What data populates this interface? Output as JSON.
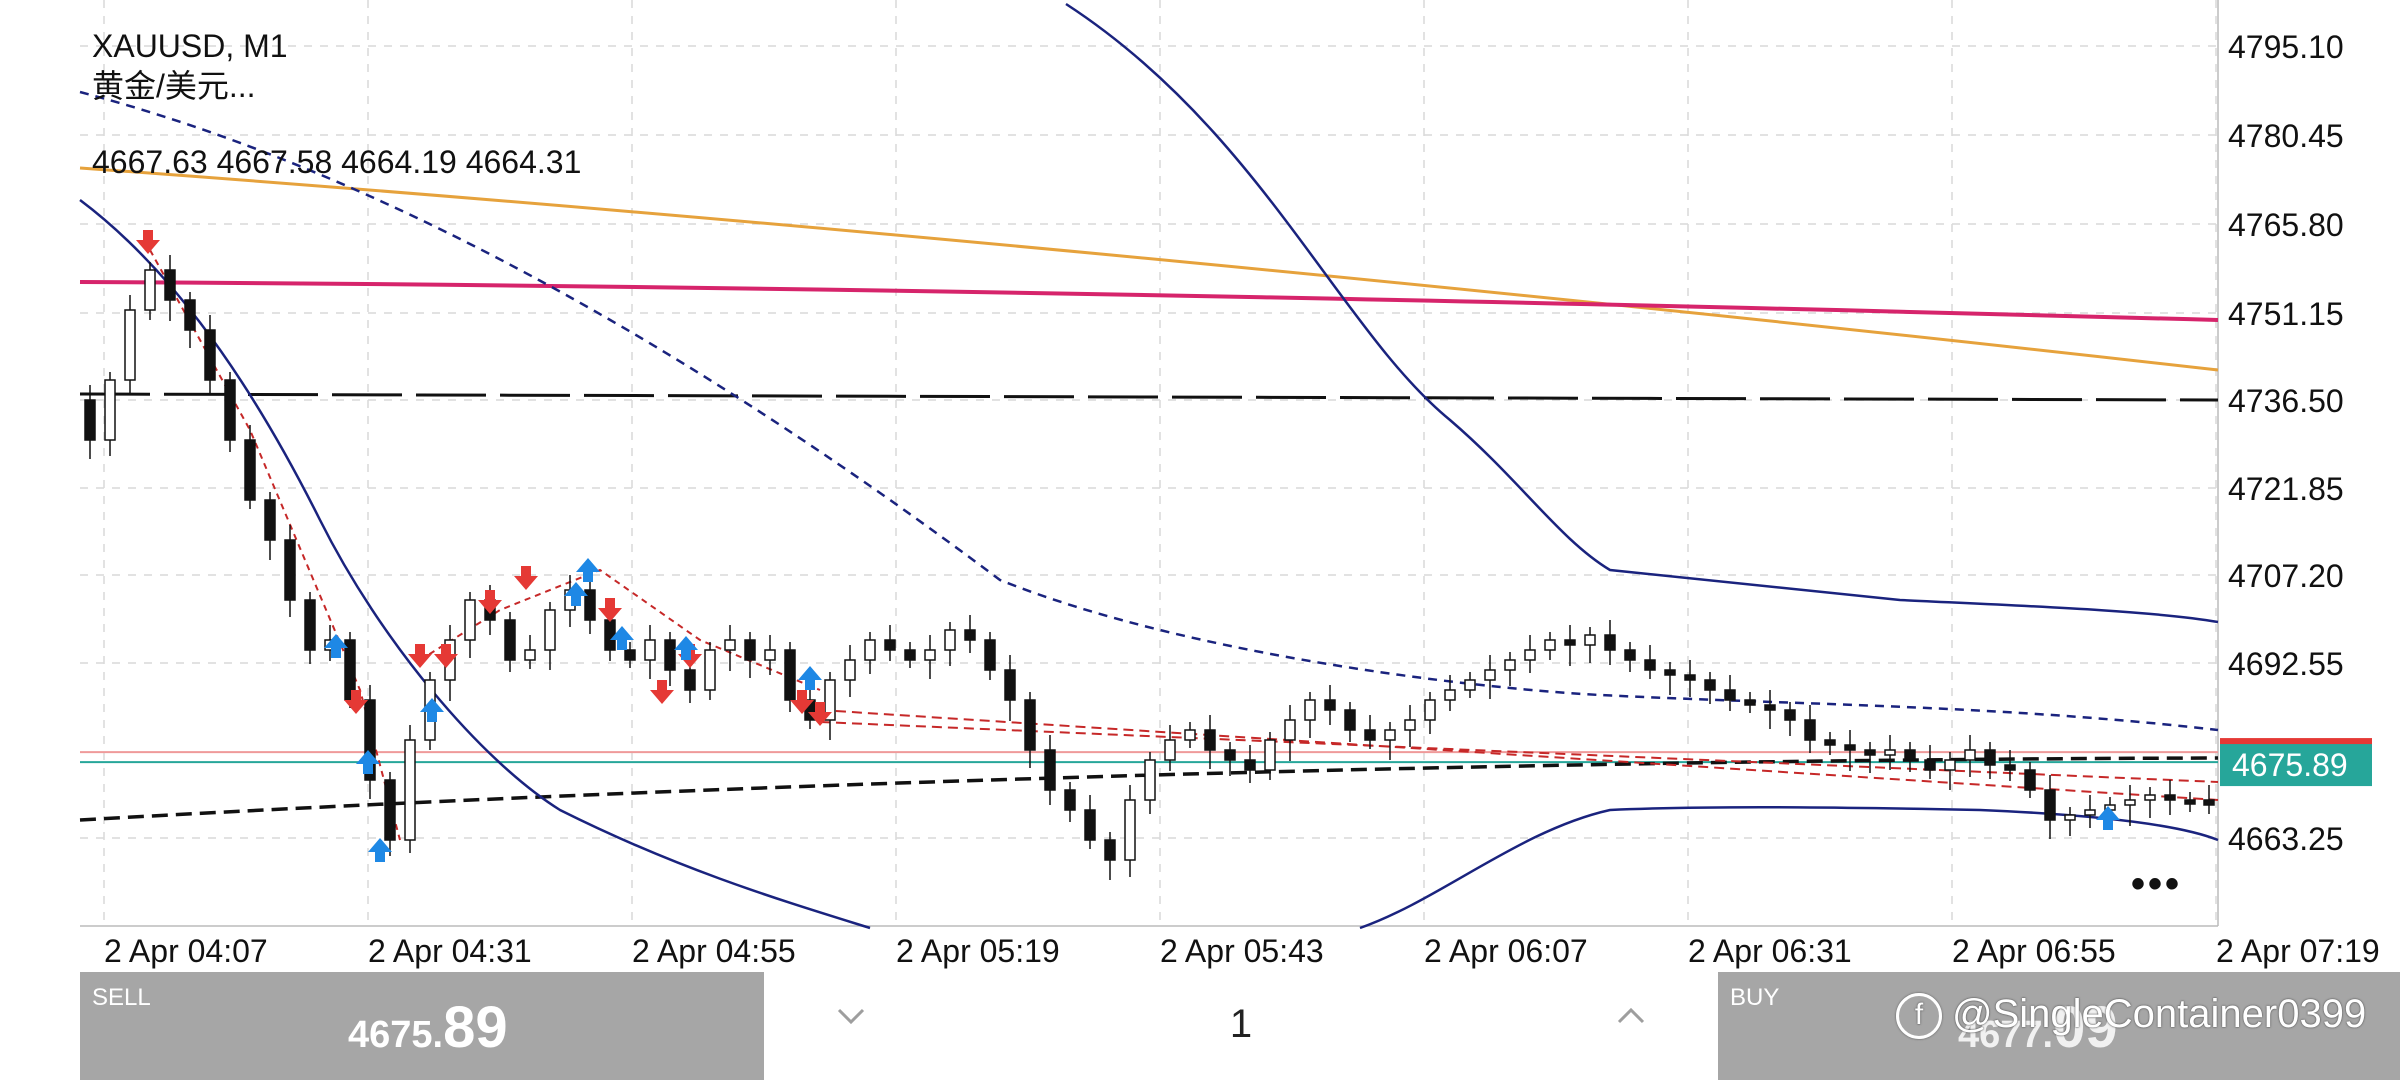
{
  "header": {
    "symbol": "XAUUSD, M1",
    "description": "黄金/美元...",
    "ohlc": "4667.63 4667.58 4664.19 4664.31"
  },
  "price_axis": [
    "4795.10",
    "4780.45",
    "4765.80",
    "4751.15",
    "4736.50",
    "4721.85",
    "4707.20",
    "4692.55",
    "4663.25"
  ],
  "current_price_tag": "4675.89",
  "time_axis": [
    "2 Apr 04:07",
    "2 Apr 04:31",
    "2 Apr 04:55",
    "2 Apr 05:19",
    "2 Apr 05:43",
    "2 Apr 06:07",
    "2 Apr 06:31",
    "2 Apr 06:55",
    "2 Apr 07:19"
  ],
  "more_glyph": "•••",
  "trade_panel": {
    "sell_label": "SELL",
    "sell_price_main": "4675.",
    "sell_price_big": "89",
    "buy_label": "BUY",
    "buy_price_main": "4677.",
    "buy_price_big": "09",
    "quantity": "1",
    "down_icon": "chevron-down-icon",
    "up_icon": "chevron-up-icon"
  },
  "watermark": {
    "logo": "f",
    "text": "@SingleContainer0399"
  },
  "colors": {
    "bollinger": "#1a237e",
    "ma_orange": "#e6a23c",
    "ma_crimson": "#d6246b",
    "signal_down": "#e53935",
    "signal_up": "#1e88e5",
    "price_tag": "#26a69a",
    "button_gray": "#a6a6a6"
  }
}
